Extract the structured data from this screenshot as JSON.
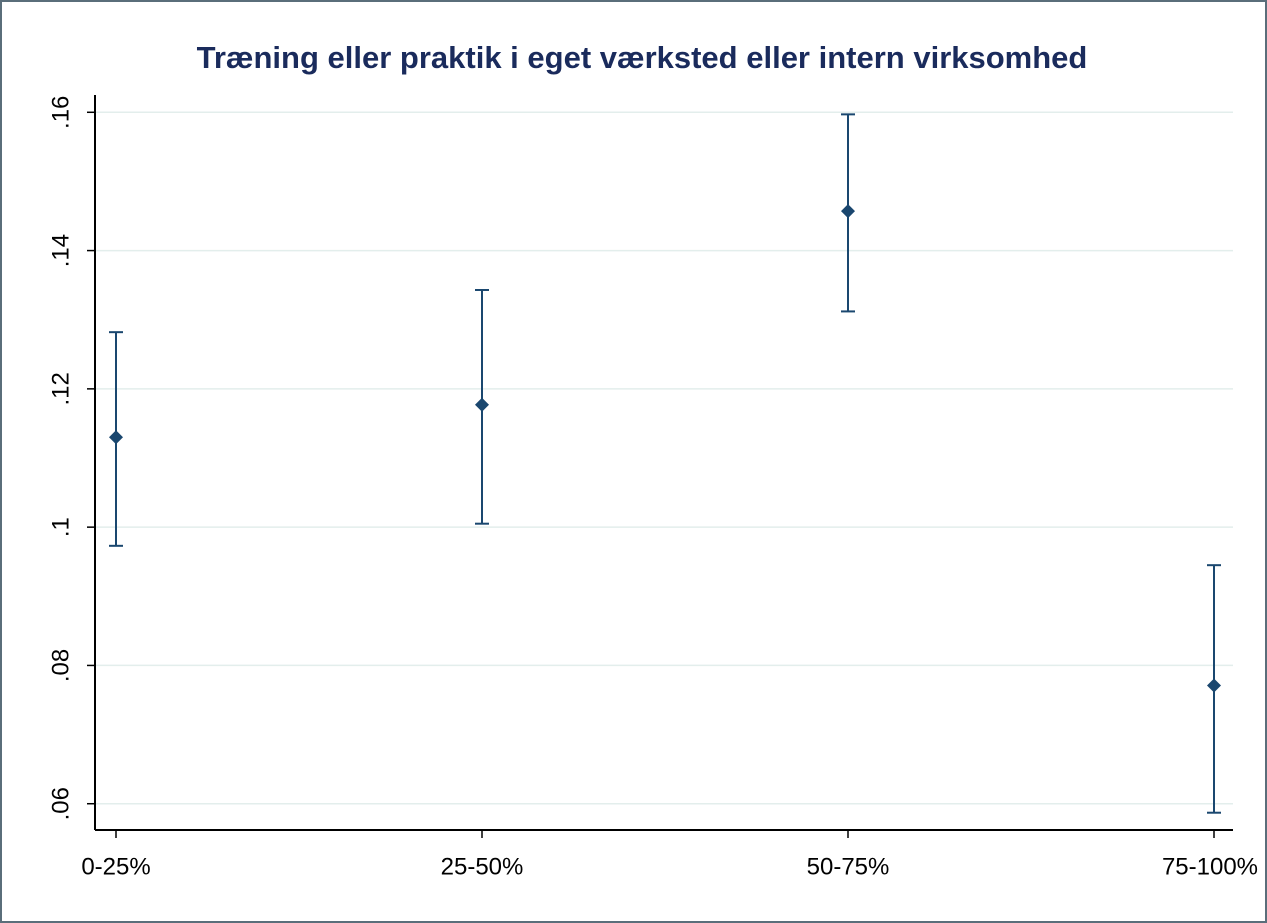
{
  "chart_data": {
    "type": "errorbar",
    "title": "Træning eller praktik i eget værksted eller intern virksomhed",
    "categories": [
      "0-25%",
      "25-50%",
      "50-75%",
      "75-100%"
    ],
    "series": [
      {
        "color": "#1a476f",
        "values": [
          0.113,
          0.1177,
          0.1457,
          0.0771
        ],
        "lower": [
          0.0973,
          0.1005,
          0.1312,
          0.0587
        ],
        "upper": [
          0.1282,
          0.1343,
          0.1597,
          0.0945
        ]
      }
    ],
    "ylim": [
      0.0562,
      0.1625
    ],
    "yticks": [
      {
        "value": 0.06,
        "label": ".06"
      },
      {
        "value": 0.08,
        "label": ".08"
      },
      {
        "value": 0.1,
        "label": ".1"
      },
      {
        "value": 0.12,
        "label": ".12"
      },
      {
        "value": 0.14,
        "label": ".14"
      },
      {
        "value": 0.16,
        "label": ".16"
      }
    ],
    "grid": true
  }
}
